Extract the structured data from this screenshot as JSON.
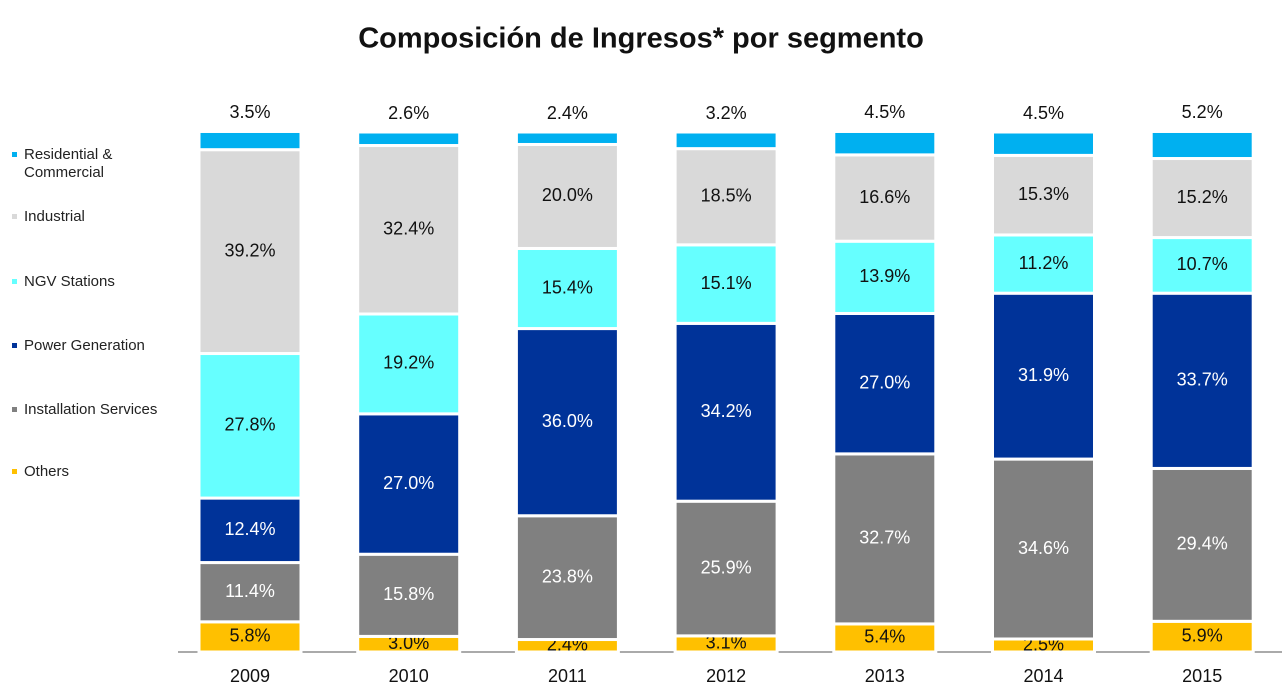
{
  "chart_data": {
    "type": "stacked_bar",
    "title": "Composición de Ingresos* por segmento",
    "categories": [
      "2009",
      "2010",
      "2011",
      "2012",
      "2013",
      "2014",
      "2015"
    ],
    "ylim": [
      0,
      100
    ],
    "series": [
      {
        "name": "Others",
        "color": "#ffc000",
        "values": [
          5.8,
          3.0,
          2.4,
          3.1,
          5.4,
          2.5,
          5.9
        ],
        "value_labels": [
          "5.8%",
          "3.0%",
          "2.4%",
          "3.1%",
          "5.4%",
          "2.5%",
          "5.9%"
        ]
      },
      {
        "name": "Installation Services",
        "color": "#808080",
        "values": [
          11.4,
          15.8,
          23.8,
          25.9,
          32.7,
          34.6,
          29.4
        ],
        "value_labels": [
          "11.4%",
          "15.8%",
          "23.8%",
          "25.9%",
          "32.7%",
          "34.6%",
          "29.4%"
        ]
      },
      {
        "name": "Power Generation",
        "color": "#003399",
        "values": [
          12.4,
          27.0,
          36.0,
          34.2,
          27.0,
          31.9,
          33.7
        ],
        "value_labels": [
          "12.4%",
          "27.0%",
          "36.0%",
          "34.2%",
          "27.0%",
          "31.9%",
          "33.7%"
        ]
      },
      {
        "name": "NGV Stations",
        "color": "#66ffff",
        "values": [
          27.8,
          19.2,
          15.4,
          15.1,
          13.9,
          11.2,
          10.7
        ],
        "value_labels": [
          "27.8%",
          "19.2%",
          "15.4%",
          "15.1%",
          "13.9%",
          "11.2%",
          "10.7%"
        ]
      },
      {
        "name": "Industrial",
        "color": "#d9d9d9",
        "values": [
          39.2,
          32.4,
          20.0,
          18.5,
          16.6,
          15.3,
          15.2
        ],
        "value_labels": [
          "39.2%",
          "32.4%",
          "20.0%",
          "18.5%",
          "16.6%",
          "15.3%",
          "15.2%"
        ]
      },
      {
        "name": "Residential & Commercial",
        "color": "#00b0f0",
        "values": [
          3.5,
          2.6,
          2.4,
          3.2,
          4.5,
          4.5,
          5.2
        ],
        "value_labels": [
          "3.5%",
          "2.6%",
          "2.4%",
          "3.2%",
          "4.5%",
          "4.5%",
          "5.2%"
        ]
      }
    ]
  }
}
